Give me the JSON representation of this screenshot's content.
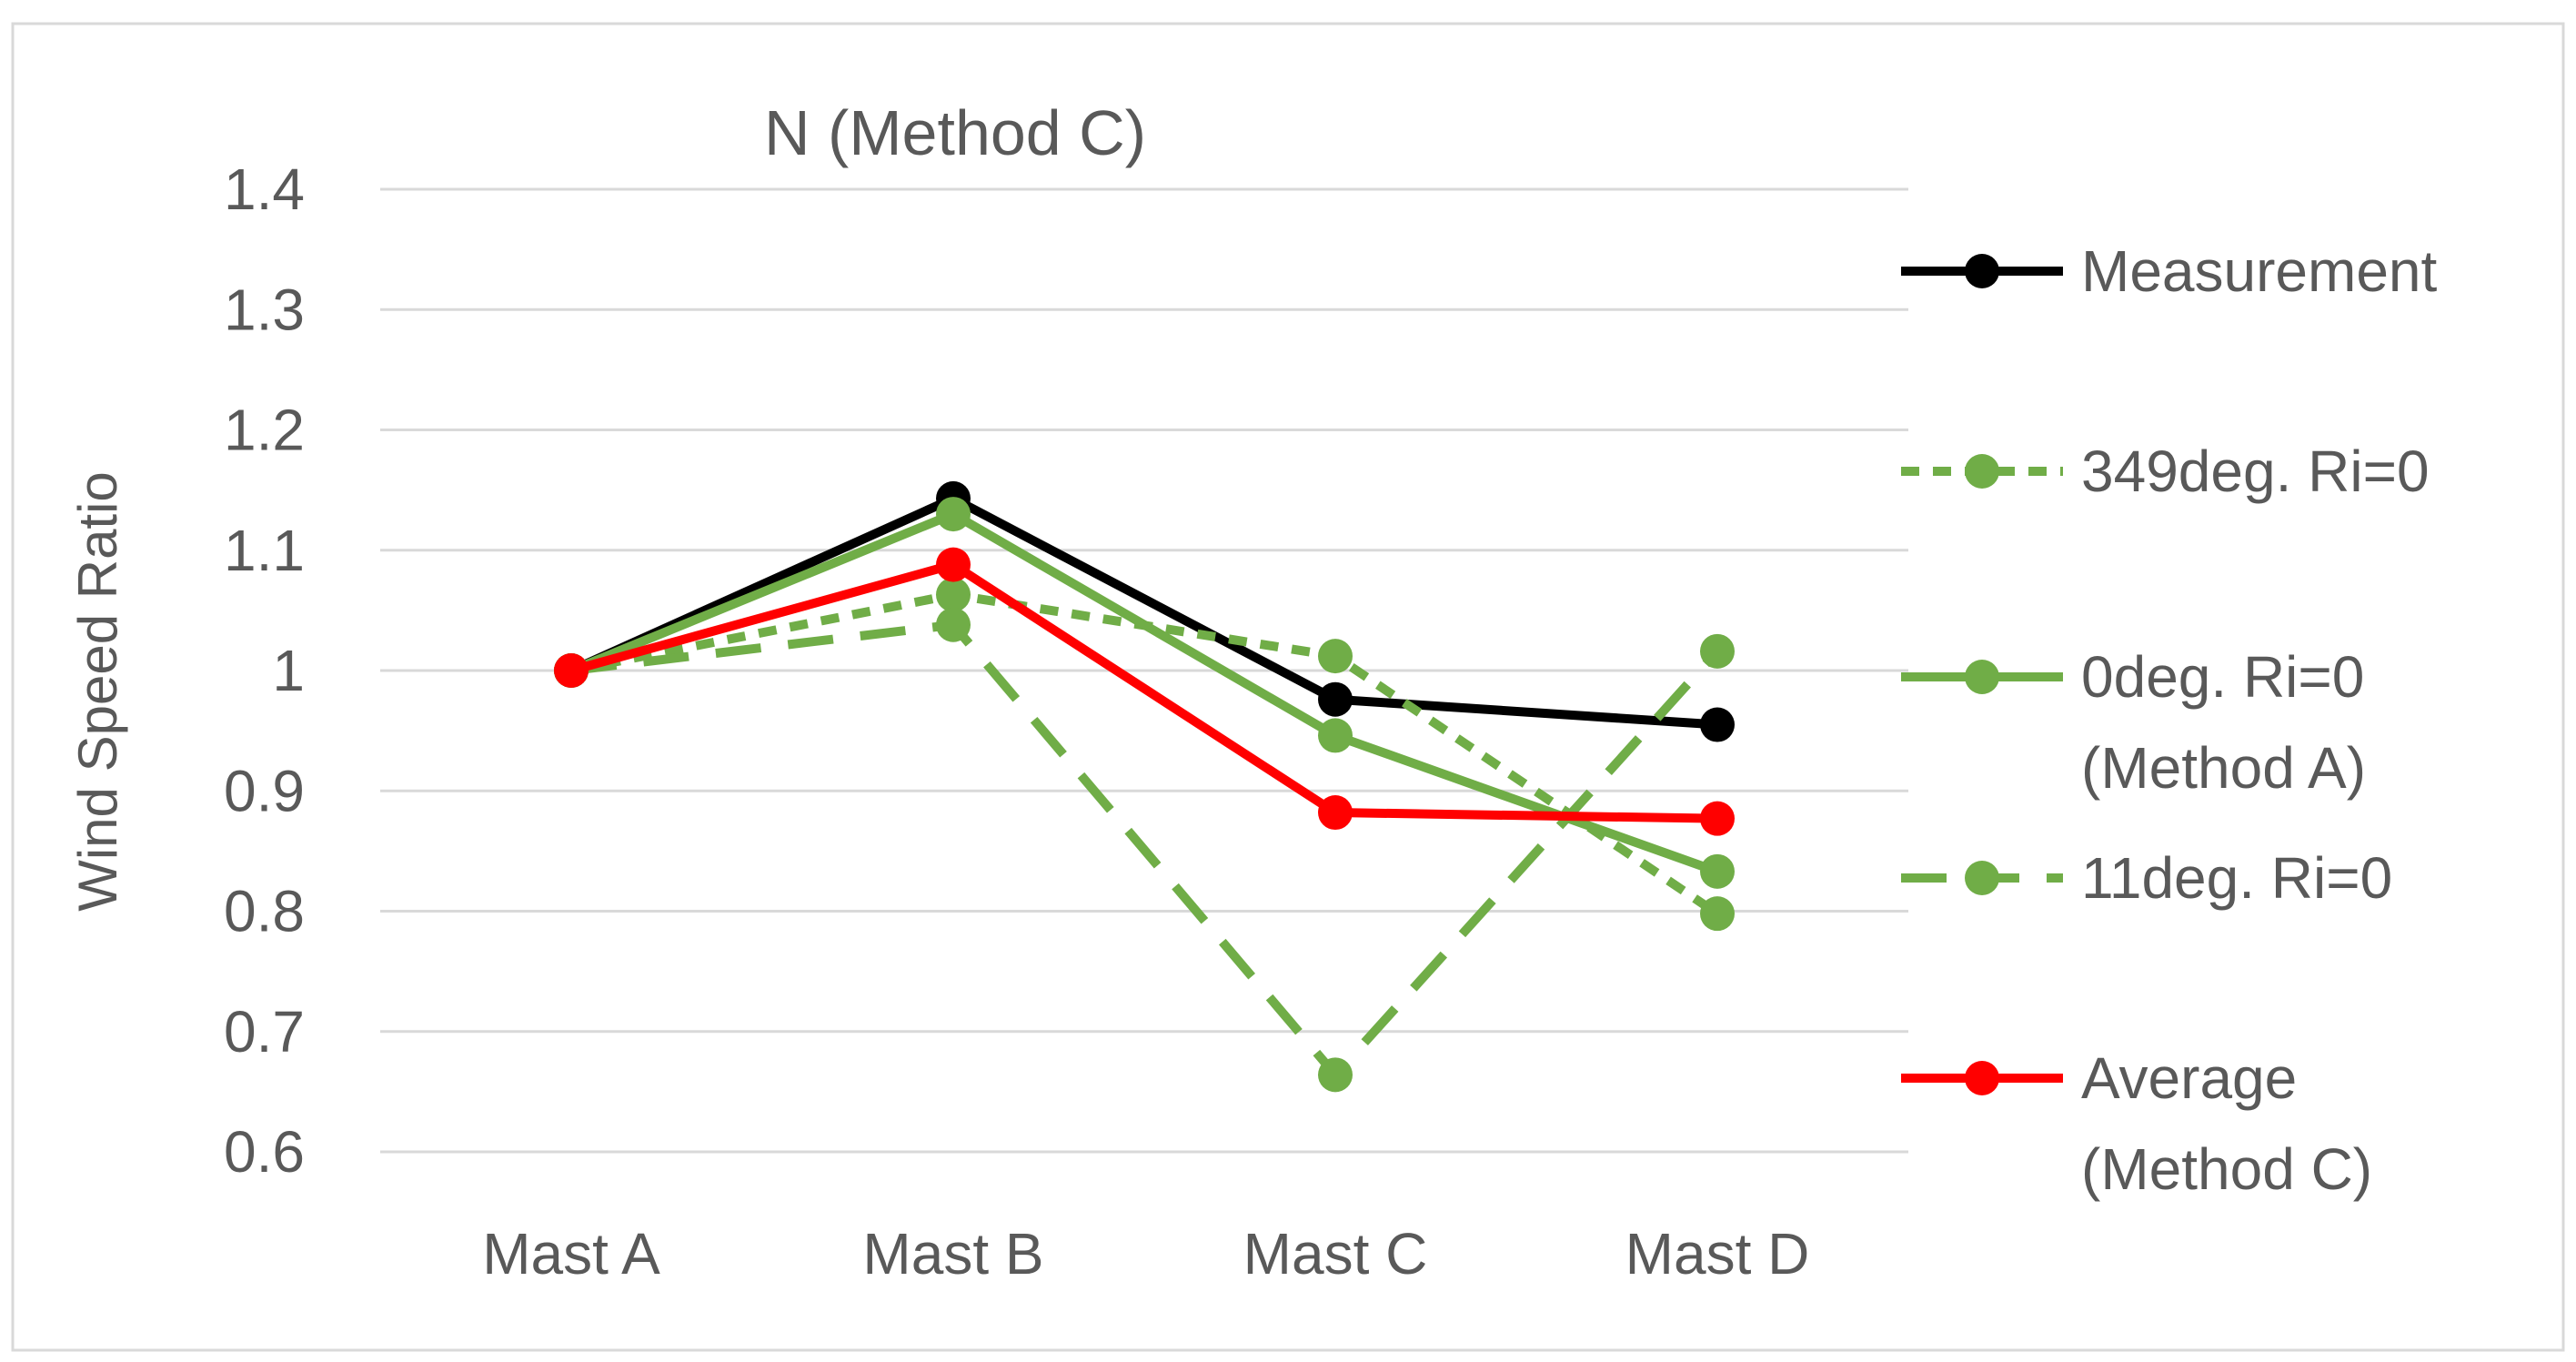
{
  "chart_data": {
    "type": "line",
    "title": "N (Method C)",
    "xlabel": "",
    "ylabel": "Wind Speed Ratio",
    "categories": [
      "Mast A",
      "Mast B",
      "Mast C",
      "Mast D"
    ],
    "ylim": [
      0.6,
      1.4
    ],
    "yticks": [
      "1.4",
      "1.3",
      "1.2",
      "1.1",
      "1",
      "0.9",
      "0.8",
      "0.7",
      "0.6"
    ],
    "ytick_values": [
      1.4,
      1.3,
      1.2,
      1.1,
      1.0,
      0.9,
      0.8,
      0.7,
      0.6
    ],
    "grid": true,
    "legend_position": "right",
    "series": [
      {
        "name": "Measurement",
        "legend_lines": [
          "Measurement"
        ],
        "values": [
          1.0,
          1.143,
          0.976,
          0.955
        ],
        "color": "#000000",
        "dash": "solid"
      },
      {
        "name": "349deg. Ri=0",
        "legend_lines": [
          "349deg. Ri=0"
        ],
        "values": [
          1.0,
          1.063,
          1.012,
          0.798
        ],
        "color": "#70ad47",
        "dash": "short-dash"
      },
      {
        "name": "0deg. Ri=0 (Method A)",
        "legend_lines": [
          "0deg. Ri=0",
          "(Method A)"
        ],
        "values": [
          1.0,
          1.13,
          0.946,
          0.833
        ],
        "color": "#70ad47",
        "dash": "solid"
      },
      {
        "name": "11deg. Ri=0",
        "legend_lines": [
          "11deg. Ri=0"
        ],
        "values": [
          1.0,
          1.038,
          0.664,
          1.016
        ],
        "color": "#70ad47",
        "dash": "long-dash"
      },
      {
        "name": "Average (Method C)",
        "legend_lines": [
          "Average",
          "(Method C)"
        ],
        "values": [
          1.0,
          1.088,
          0.882,
          0.877
        ],
        "color": "#ff0000",
        "dash": "solid"
      }
    ]
  }
}
